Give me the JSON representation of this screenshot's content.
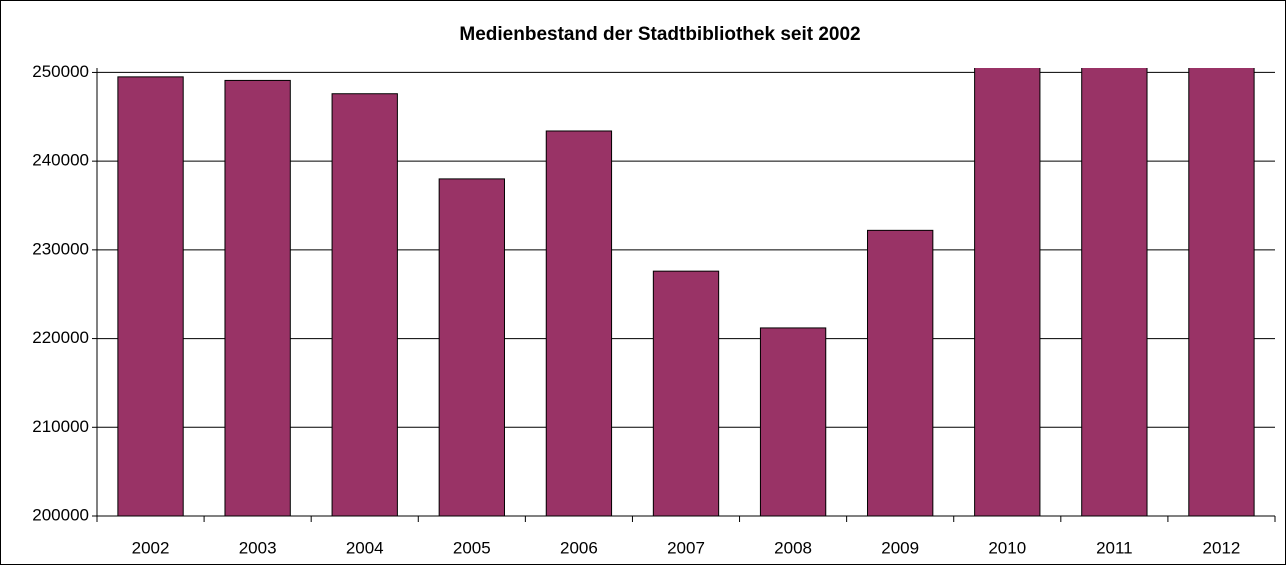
{
  "chart_data": {
    "type": "bar",
    "title": "Medienbestand der Stadtbibliothek seit 2002",
    "categories": [
      "2002",
      "2003",
      "2004",
      "2005",
      "2006",
      "2007",
      "2008",
      "2009",
      "2010",
      "2011",
      "2012"
    ],
    "values": [
      249500,
      249100,
      247600,
      238000,
      243400,
      227600,
      221200,
      232200,
      252000,
      252000,
      252000
    ],
    "color": "#993366",
    "ylim": [
      200000,
      250500
    ],
    "yticks": [
      200000,
      210000,
      220000,
      230000,
      240000,
      250000
    ],
    "grid": true
  }
}
